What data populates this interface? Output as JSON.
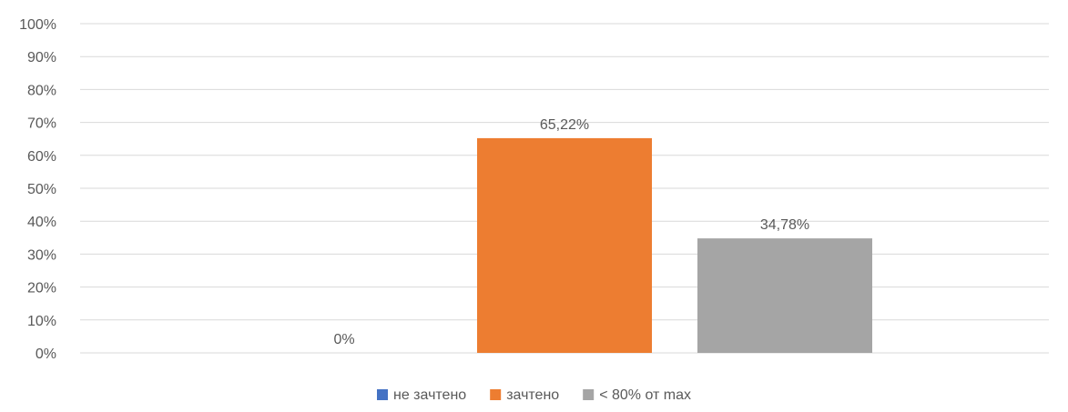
{
  "chart_data": {
    "type": "bar",
    "categories": [
      "не зачтено",
      "зачтено",
      "< 80%  от max"
    ],
    "series": [
      {
        "name": "не зачтено",
        "values": [
          0,
          null,
          null
        ]
      },
      {
        "name": "зачтено",
        "values": [
          null,
          65.22,
          null
        ]
      },
      {
        "name": "< 80%  от max",
        "values": [
          null,
          null,
          34.78
        ]
      }
    ],
    "data_labels": [
      "0%",
      "65,22%",
      "34,78%"
    ],
    "ylim": [
      0,
      100
    ],
    "ytick_labels": [
      "0%",
      "10%",
      "20%",
      "30%",
      "40%",
      "50%",
      "60%",
      "70%",
      "80%",
      "90%",
      "100%"
    ],
    "grid": true,
    "legend_position": "bottom",
    "colors": [
      "#4472c4",
      "#ed7d31",
      "#a5a5a5"
    ],
    "gridline_color": "#d9d9d9",
    "text_color": "#595959"
  }
}
